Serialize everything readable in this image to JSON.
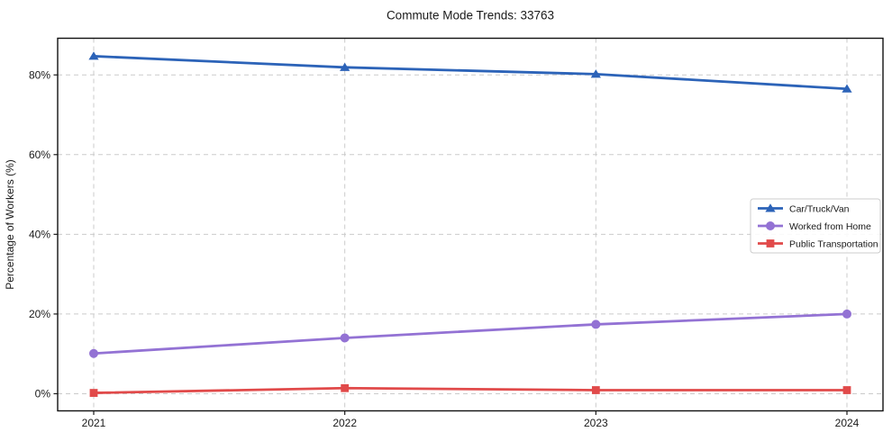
{
  "chart_data": {
    "type": "line",
    "title": "Commute Mode Trends: 33763",
    "ylabel": "Percentage of Workers (%)",
    "categories": [
      "2021",
      "2022",
      "2023",
      "2024"
    ],
    "series": [
      {
        "name": "Car/Truck/Van",
        "color": "#2c63b8",
        "marker": "triangle",
        "values": [
          84.7,
          81.9,
          80.2,
          76.5
        ]
      },
      {
        "name": "Worked from Home",
        "color": "#9372d4",
        "marker": "circle",
        "values": [
          10.1,
          14.0,
          17.4,
          20.0
        ]
      },
      {
        "name": "Public Transportation",
        "color": "#e14a4a",
        "marker": "square",
        "values": [
          0.2,
          1.4,
          0.9,
          0.9
        ]
      }
    ],
    "yticks": [
      0,
      20,
      40,
      60,
      80
    ],
    "ytick_labels": [
      "0%",
      "20%",
      "40%",
      "60%",
      "80%"
    ],
    "ylim": [
      -4.3,
      89.2
    ],
    "grid": true,
    "legend_position": "center-right"
  }
}
